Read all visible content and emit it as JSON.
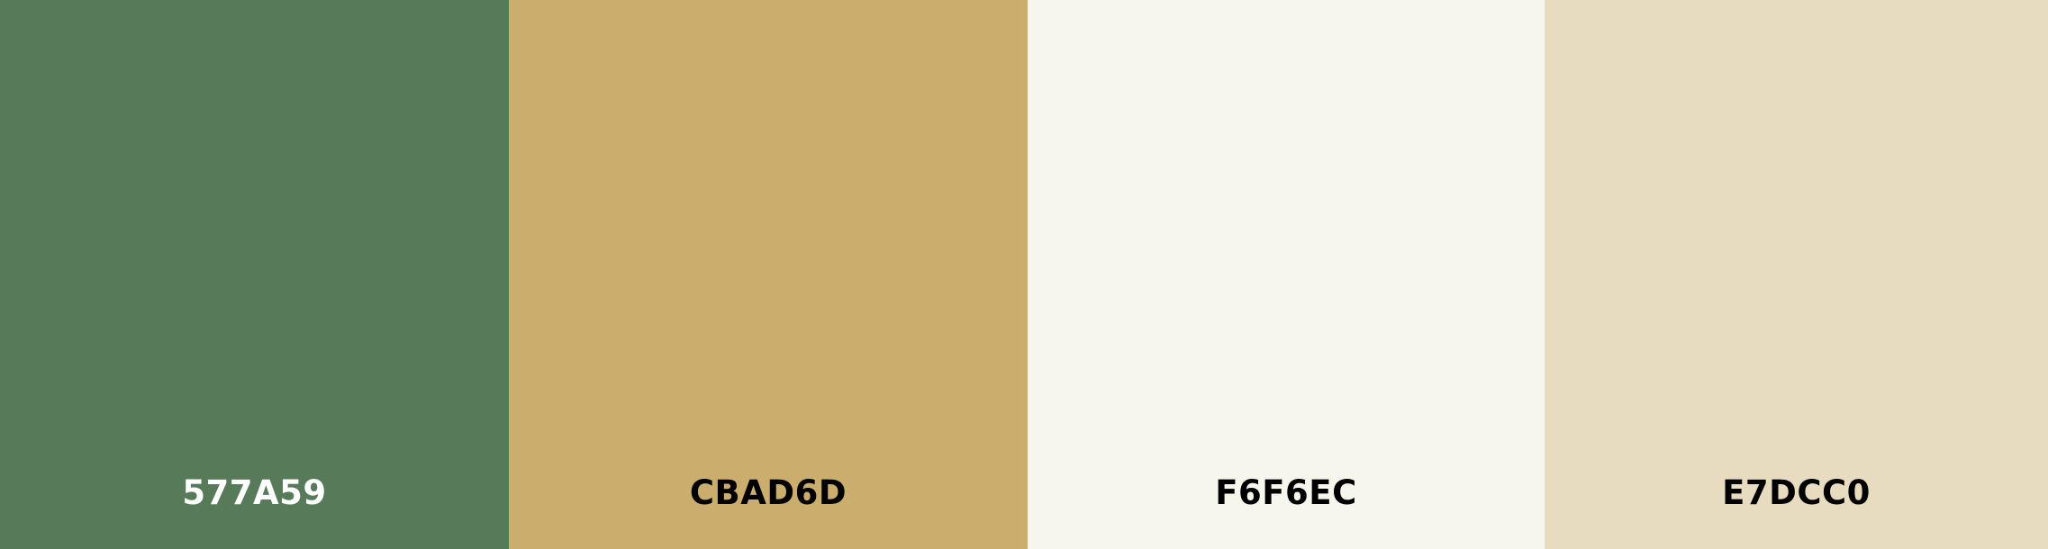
{
  "palette": {
    "swatches": [
      {
        "hex_label": "577A59",
        "color": "#577A59",
        "text_color": "#FFFFFF"
      },
      {
        "hex_label": "CBAD6D",
        "color": "#CBAD6D",
        "text_color": "#000000"
      },
      {
        "hex_label": "F6F6EC",
        "color": "#F6F6EC",
        "text_color": "#000000"
      },
      {
        "hex_label": "E7DCC0",
        "color": "#E7DCC0",
        "text_color": "#000000"
      }
    ]
  }
}
